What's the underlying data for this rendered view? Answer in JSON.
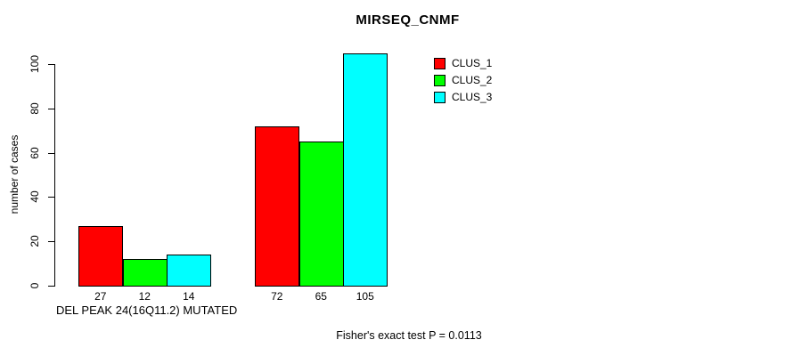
{
  "title": "MIRSEQ_CNMF",
  "footer_annotation": "Fisher's exact test P = 0.0113",
  "legend": {
    "items": [
      {
        "label": "CLUS_1",
        "color": "#ff0000"
      },
      {
        "label": "CLUS_2",
        "color": "#00ff00"
      },
      {
        "label": "CLUS_3",
        "color": "#00ffff"
      }
    ]
  },
  "chart_data": {
    "type": "bar",
    "title": "MIRSEQ_CNMF",
    "xlabel": "DEL PEAK 24(16Q11.2) MUTATED",
    "ylabel": "number of cases",
    "ylim": [
      0,
      105
    ],
    "yticks": [
      0,
      20,
      40,
      60,
      80,
      100
    ],
    "grid": false,
    "legend_position": "top-right",
    "groups": [
      {
        "label": "DEL PEAK 24(16Q11.2) MUTATED",
        "values": [
          27,
          12,
          14
        ]
      },
      {
        "label": "",
        "values": [
          72,
          65,
          105
        ]
      }
    ],
    "series": [
      {
        "name": "CLUS_1",
        "color": "#ff0000"
      },
      {
        "name": "CLUS_2",
        "color": "#00ff00"
      },
      {
        "name": "CLUS_3",
        "color": "#00ffff"
      }
    ],
    "annotation": "Fisher's exact test P = 0.0113",
    "bar_value_labels": [
      [
        27,
        12,
        14
      ],
      [
        72,
        65,
        105
      ]
    ]
  }
}
